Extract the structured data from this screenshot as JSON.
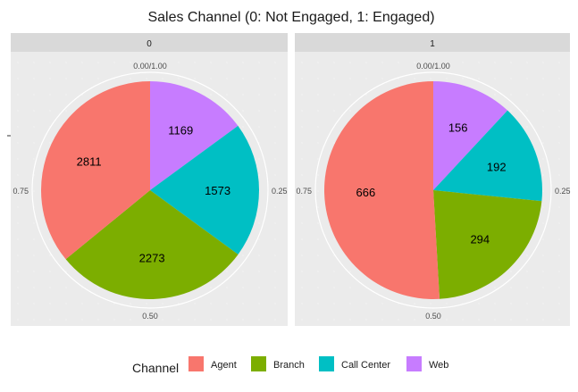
{
  "chart_data": {
    "type": "pie",
    "title": "Sales Channel (0: Not Engaged, 1: Engaged)",
    "facets": [
      {
        "label": "0",
        "slices": [
          {
            "category": "Web",
            "value": 1169
          },
          {
            "category": "Call Center",
            "value": 1573
          },
          {
            "category": "Branch",
            "value": 2273
          },
          {
            "category": "Agent",
            "value": 2811
          }
        ]
      },
      {
        "label": "1",
        "slices": [
          {
            "category": "Web",
            "value": 156
          },
          {
            "category": "Call Center",
            "value": 192
          },
          {
            "category": "Branch",
            "value": 294
          },
          {
            "category": "Agent",
            "value": 666
          }
        ]
      }
    ],
    "tick_labels": [
      "0.00/1.00",
      "0.25",
      "0.50",
      "0.75"
    ],
    "legend": {
      "title": "Channel",
      "position": "bottom",
      "entries": [
        "Agent",
        "Branch",
        "Call Center",
        "Web"
      ]
    },
    "colors": {
      "Agent": "#F8766D",
      "Branch": "#7CAE00",
      "Call Center": "#00BFC4",
      "Web": "#C77CFF"
    },
    "panel_background": "#EBEBEB",
    "strip_background": "#D9D9D9",
    "grid": true
  }
}
